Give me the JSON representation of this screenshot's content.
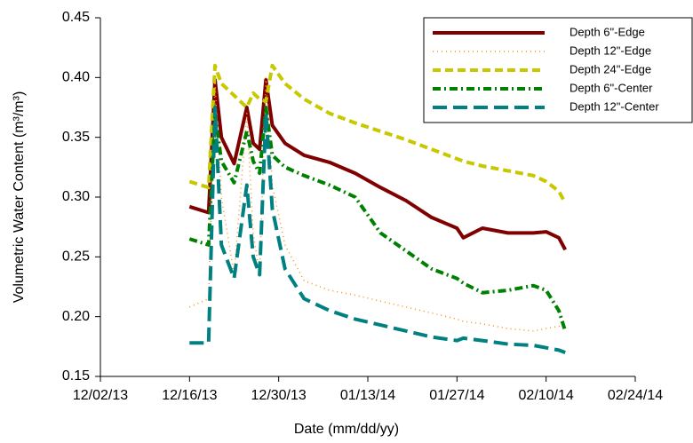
{
  "chart_data": {
    "type": "line",
    "x_label": "Date (mm/dd/yy)",
    "y_label": "Volumetric Water Content (m³/m³)",
    "x": [
      "12/16/13",
      "12/19/13",
      "12/20/13",
      "12/21/13",
      "12/23/13",
      "12/25/13",
      "12/26/13",
      "12/27/13",
      "12/28/13",
      "12/29/13",
      "12/31/13",
      "01/03/14",
      "01/07/14",
      "01/11/14",
      "01/15/14",
      "01/19/14",
      "01/23/14",
      "01/27/14",
      "01/28/14",
      "01/31/14",
      "02/04/14",
      "02/08/14",
      "02/10/14",
      "02/12/14",
      "02/13/14"
    ],
    "series": [
      {
        "name": "Depth 6\"-Edge",
        "color": "#800000",
        "dash": "solid",
        "values": [
          0.292,
          0.287,
          0.398,
          0.35,
          0.328,
          0.375,
          0.345,
          0.34,
          0.398,
          0.36,
          0.345,
          0.335,
          0.329,
          0.32,
          0.308,
          0.297,
          0.283,
          0.274,
          0.266,
          0.274,
          0.27,
          0.27,
          0.271,
          0.266,
          0.256
        ]
      },
      {
        "name": "Depth 12\"-Edge",
        "color": "#ff8c1a",
        "dash": "dotted",
        "values": [
          0.208,
          0.215,
          0.395,
          0.3,
          0.235,
          0.37,
          0.27,
          0.235,
          0.4,
          0.31,
          0.26,
          0.23,
          0.222,
          0.218,
          0.213,
          0.208,
          0.203,
          0.198,
          0.196,
          0.194,
          0.19,
          0.188,
          0.19,
          0.192,
          0.19
        ]
      },
      {
        "name": "Depth 24\"-Edge",
        "color": "#c8c800",
        "dash": "dashed",
        "values": [
          0.313,
          0.308,
          0.41,
          0.395,
          0.385,
          0.375,
          0.387,
          0.382,
          0.38,
          0.41,
          0.395,
          0.382,
          0.37,
          0.362,
          0.355,
          0.348,
          0.34,
          0.332,
          0.33,
          0.326,
          0.322,
          0.318,
          0.313,
          0.305,
          0.295
        ]
      },
      {
        "name": "Depth 6\"-Center",
        "color": "#008000",
        "dash": "dashdot",
        "values": [
          0.265,
          0.26,
          0.37,
          0.33,
          0.312,
          0.355,
          0.33,
          0.32,
          0.375,
          0.335,
          0.325,
          0.318,
          0.31,
          0.3,
          0.27,
          0.255,
          0.24,
          0.232,
          0.228,
          0.22,
          0.222,
          0.226,
          0.222,
          0.205,
          0.188
        ]
      },
      {
        "name": "Depth 12\"-Center",
        "color": "#008080",
        "dash": "longdash",
        "values": [
          0.178,
          0.178,
          0.375,
          0.26,
          0.232,
          0.31,
          0.25,
          0.235,
          0.37,
          0.29,
          0.24,
          0.215,
          0.205,
          0.198,
          0.193,
          0.188,
          0.183,
          0.18,
          0.182,
          0.18,
          0.177,
          0.176,
          0.174,
          0.172,
          0.17
        ]
      }
    ],
    "xlim": [
      "12/02/13",
      "02/24/14"
    ],
    "xticks": [
      "12/02/13",
      "12/16/13",
      "12/30/13",
      "01/13/14",
      "01/27/14",
      "02/10/14",
      "02/24/14"
    ],
    "ylim": [
      0.15,
      0.45
    ],
    "yticks": [
      0.15,
      {
        "value": 0.2,
        "label": "0.20"
      },
      0.25,
      {
        "value": 0.3,
        "label": "0.30"
      },
      0.35,
      {
        "value": 0.4,
        "label": "0.40"
      },
      0.45
    ],
    "grid": false,
    "legend": "upper right"
  }
}
